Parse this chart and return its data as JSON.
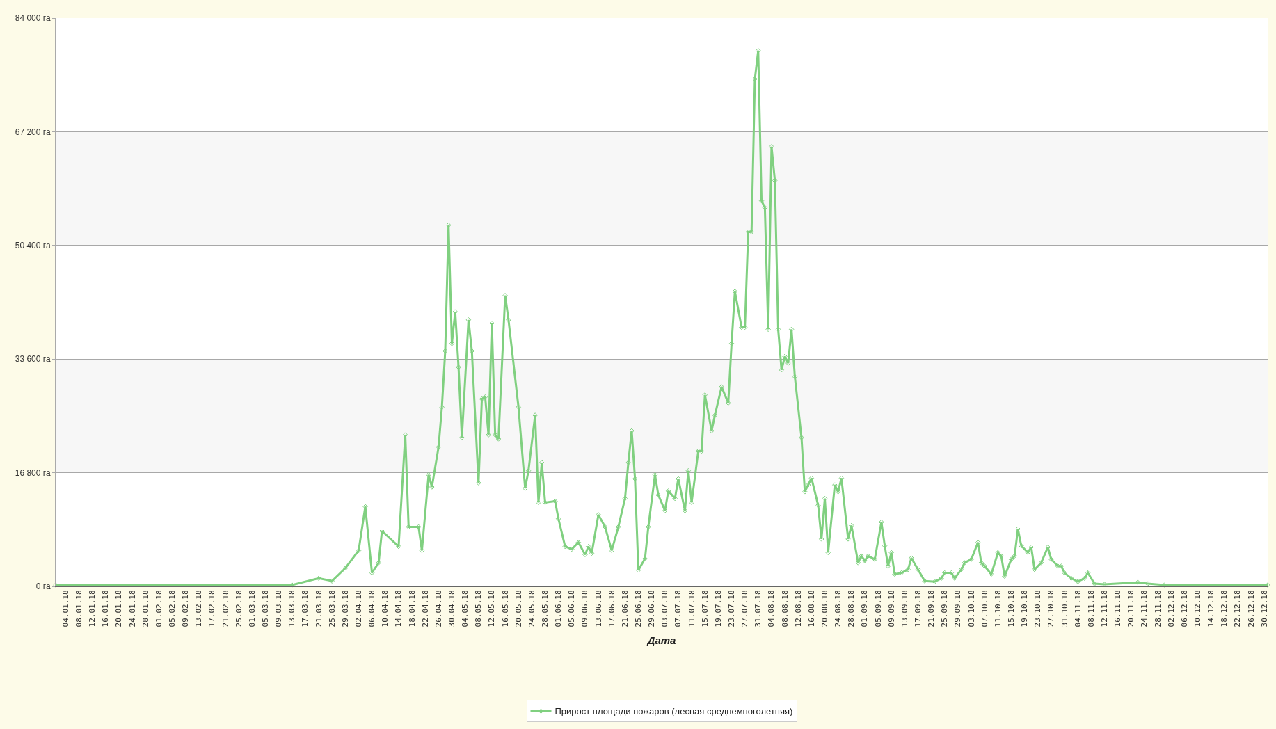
{
  "chart_data": {
    "type": "line",
    "xlabel": "Дата",
    "legend": "bottom",
    "grid": "y",
    "marker": "diamond",
    "line_style": "solid",
    "xlim": [
      "--01-01",
      "--12-31"
    ],
    "ylim": [
      0,
      84000
    ],
    "yticks": [
      {
        "value": 0,
        "label": "0 га"
      },
      {
        "value": 16800,
        "label": "16 800 га"
      },
      {
        "value": 33600,
        "label": "33 600 га"
      },
      {
        "value": 50400,
        "label": "50 400 га"
      },
      {
        "value": 67200,
        "label": "67 200 га"
      },
      {
        "value": 84000,
        "label": "84 000 га"
      }
    ],
    "bands": [
      {
        "axis": "y",
        "from": 16800,
        "to": 33600,
        "color": "#f7f7f7"
      },
      {
        "axis": "y",
        "from": 50400,
        "to": 67200,
        "color": "#f7f7f7"
      }
    ],
    "series": [
      {
        "name": "Прирост площади пожаров (лесная среднемноголетняя)",
        "color": "#80d080",
        "x": [
          "--01-01",
          "--03-13",
          "--03-21",
          "--03-25",
          "--03-29",
          "--04-02",
          "--04-04",
          "--04-06",
          "--04-08",
          "--04-09",
          "--04-14",
          "--04-16",
          "--04-17",
          "--04-20",
          "--04-21",
          "--04-23",
          "--04-24",
          "--04-26",
          "--04-27",
          "--04-28",
          "--04-29",
          "--04-30",
          "--05-01",
          "--05-02",
          "--05-03",
          "--05-05",
          "--05-06",
          "--05-08",
          "--05-09",
          "--05-10",
          "--05-11",
          "--05-12",
          "--05-13",
          "--05-14",
          "--05-16",
          "--05-17",
          "--05-20",
          "--05-22",
          "--05-23",
          "--05-25",
          "--05-26",
          "--05-27",
          "--05-28",
          "--05-31",
          "--06-01",
          "--06-03",
          "--06-05",
          "--06-07",
          "--06-09",
          "--06-10",
          "--06-11",
          "--06-13",
          "--06-15",
          "--06-17",
          "--06-19",
          "--06-21",
          "--06-22",
          "--06-23",
          "--06-24",
          "--06-25",
          "--06-27",
          "--06-28",
          "--06-30",
          "--07-01",
          "--07-03",
          "--07-04",
          "--07-06",
          "--07-07",
          "--07-09",
          "--07-10",
          "--07-11",
          "--07-13",
          "--07-14",
          "--07-15",
          "--07-17",
          "--07-18",
          "--07-20",
          "--07-22",
          "--07-23",
          "--07-24",
          "--07-26",
          "--07-27",
          "--07-28",
          "--07-29",
          "--07-30",
          "--07-31",
          "--08-01",
          "--08-02",
          "--08-03",
          "--08-04",
          "--08-05",
          "--08-06",
          "--08-07",
          "--08-08",
          "--08-09",
          "--08-10",
          "--08-11",
          "--08-13",
          "--08-14",
          "--08-15",
          "--08-16",
          "--08-18",
          "--08-19",
          "--08-20",
          "--08-21",
          "--08-23",
          "--08-24",
          "--08-25",
          "--08-27",
          "--08-28",
          "--08-30",
          "--08-31",
          "--09-01",
          "--09-02",
          "--09-04",
          "--09-06",
          "--09-07",
          "--09-08",
          "--09-09",
          "--09-10",
          "--09-12",
          "--09-14",
          "--09-15",
          "--09-17",
          "--09-19",
          "--09-22",
          "--09-24",
          "--09-25",
          "--09-27",
          "--09-28",
          "--09-30",
          "--10-01",
          "--10-03",
          "--10-05",
          "--10-06",
          "--10-07",
          "--10-09",
          "--10-11",
          "--10-12",
          "--10-13",
          "--10-15",
          "--10-16",
          "--10-17",
          "--10-18",
          "--10-20",
          "--10-21",
          "--10-22",
          "--10-24",
          "--10-26",
          "--10-27",
          "--10-29",
          "--10-30",
          "--10-31",
          "--11-02",
          "--11-04",
          "--11-06",
          "--11-07",
          "--11-09",
          "--11-12",
          "--11-22",
          "--11-25",
          "--11-30",
          "--12-31"
        ],
        "values": [
          200,
          200,
          1200,
          800,
          2700,
          5300,
          11800,
          2000,
          3500,
          8200,
          5900,
          22400,
          8800,
          8800,
          5300,
          16500,
          14700,
          20600,
          26500,
          34800,
          53400,
          35900,
          40600,
          32400,
          22000,
          39400,
          34800,
          15300,
          27700,
          28000,
          22400,
          38900,
          22400,
          21800,
          43000,
          39400,
          26500,
          14500,
          17100,
          25300,
          12400,
          18300,
          12400,
          12600,
          10000,
          5900,
          5500,
          6500,
          4700,
          5900,
          4900,
          10600,
          8800,
          5300,
          8800,
          13000,
          18300,
          23000,
          15900,
          2400,
          4100,
          8800,
          16500,
          13500,
          11200,
          14100,
          13000,
          15900,
          11200,
          17100,
          12400,
          20000,
          20000,
          28300,
          23000,
          25300,
          29500,
          27100,
          35900,
          43600,
          38300,
          38300,
          52400,
          52400,
          75000,
          79200,
          57000,
          56000,
          38000,
          65000,
          60000,
          38000,
          32000,
          34000,
          33000,
          38000,
          31000,
          22000,
          14000,
          15000,
          16000,
          12000,
          7000,
          13000,
          5000,
          15000,
          14000,
          16000,
          7000,
          9000,
          3500,
          4500,
          3800,
          4500,
          4000,
          9500,
          6000,
          3000,
          5000,
          1800,
          2000,
          2500,
          4200,
          2500,
          800,
          700,
          1200,
          2000,
          2000,
          1200,
          2500,
          3500,
          4000,
          6500,
          3500,
          3000,
          1800,
          5000,
          4500,
          1500,
          4000,
          4500,
          8500,
          6000,
          5000,
          5800,
          2500,
          3500,
          5800,
          4000,
          3000,
          3000,
          2000,
          1200,
          700,
          1200,
          2000,
          400,
          300,
          600,
          400,
          200,
          200
        ]
      }
    ],
    "xticks": [
      {
        "value": "--01-04",
        "label": "04.01.18"
      },
      {
        "value": "--01-08",
        "label": "08.01.18"
      },
      {
        "value": "--01-12",
        "label": "12.01.18"
      },
      {
        "value": "--01-16",
        "label": "16.01.18"
      },
      {
        "value": "--01-20",
        "label": "20.01.18"
      },
      {
        "value": "--01-24",
        "label": "24.01.18"
      },
      {
        "value": "--01-28",
        "label": "28.01.18"
      },
      {
        "value": "--02-01",
        "label": "01.02.18"
      },
      {
        "value": "--02-05",
        "label": "05.02.18"
      },
      {
        "value": "--02-09",
        "label": "09.02.18"
      },
      {
        "value": "--02-13",
        "label": "13.02.18"
      },
      {
        "value": "--02-17",
        "label": "17.02.18"
      },
      {
        "value": "--02-21",
        "label": "21.02.18"
      },
      {
        "value": "--02-25",
        "label": "25.02.18"
      },
      {
        "value": "--03-01",
        "label": "01.03.18"
      },
      {
        "value": "--03-05",
        "label": "05.03.18"
      },
      {
        "value": "--03-09",
        "label": "09.03.18"
      },
      {
        "value": "--03-13",
        "label": "13.03.18"
      },
      {
        "value": "--03-17",
        "label": "17.03.18"
      },
      {
        "value": "--03-21",
        "label": "21.03.18"
      },
      {
        "value": "--03-25",
        "label": "25.03.18"
      },
      {
        "value": "--03-29",
        "label": "29.03.18"
      },
      {
        "value": "--04-02",
        "label": "02.04.18"
      },
      {
        "value": "--04-06",
        "label": "06.04.18"
      },
      {
        "value": "--04-10",
        "label": "10.04.18"
      },
      {
        "value": "--04-14",
        "label": "14.04.18"
      },
      {
        "value": "--04-18",
        "label": "18.04.18"
      },
      {
        "value": "--04-22",
        "label": "22.04.18"
      },
      {
        "value": "--04-26",
        "label": "26.04.18"
      },
      {
        "value": "--04-30",
        "label": "30.04.18"
      },
      {
        "value": "--05-04",
        "label": "04.05.18"
      },
      {
        "value": "--05-08",
        "label": "08.05.18"
      },
      {
        "value": "--05-12",
        "label": "12.05.18"
      },
      {
        "value": "--05-16",
        "label": "16.05.18"
      },
      {
        "value": "--05-20",
        "label": "20.05.18"
      },
      {
        "value": "--05-24",
        "label": "24.05.18"
      },
      {
        "value": "--05-28",
        "label": "28.05.18"
      },
      {
        "value": "--06-01",
        "label": "01.06.18"
      },
      {
        "value": "--06-05",
        "label": "05.06.18"
      },
      {
        "value": "--06-09",
        "label": "09.06.18"
      },
      {
        "value": "--06-13",
        "label": "13.06.18"
      },
      {
        "value": "--06-17",
        "label": "17.06.18"
      },
      {
        "value": "--06-21",
        "label": "21.06.18"
      },
      {
        "value": "--06-25",
        "label": "25.06.18"
      },
      {
        "value": "--06-29",
        "label": "29.06.18"
      },
      {
        "value": "--07-03",
        "label": "03.07.18"
      },
      {
        "value": "--07-07",
        "label": "07.07.18"
      },
      {
        "value": "--07-11",
        "label": "11.07.18"
      },
      {
        "value": "--07-15",
        "label": "15.07.18"
      },
      {
        "value": "--07-19",
        "label": "19.07.18"
      },
      {
        "value": "--07-23",
        "label": "23.07.18"
      },
      {
        "value": "--07-27",
        "label": "27.07.18"
      },
      {
        "value": "--07-31",
        "label": "31.07.18"
      },
      {
        "value": "--08-04",
        "label": "04.08.18"
      },
      {
        "value": "--08-08",
        "label": "08.08.18"
      },
      {
        "value": "--08-12",
        "label": "12.08.18"
      },
      {
        "value": "--08-16",
        "label": "16.08.18"
      },
      {
        "value": "--08-20",
        "label": "20.08.18"
      },
      {
        "value": "--08-24",
        "label": "24.08.18"
      },
      {
        "value": "--08-28",
        "label": "28.08.18"
      },
      {
        "value": "--09-01",
        "label": "01.09.18"
      },
      {
        "value": "--09-05",
        "label": "05.09.18"
      },
      {
        "value": "--09-09",
        "label": "09.09.18"
      },
      {
        "value": "--09-13",
        "label": "13.09.18"
      },
      {
        "value": "--09-17",
        "label": "17.09.18"
      },
      {
        "value": "--09-21",
        "label": "21.09.18"
      },
      {
        "value": "--09-25",
        "label": "25.09.18"
      },
      {
        "value": "--09-29",
        "label": "29.09.18"
      },
      {
        "value": "--10-03",
        "label": "03.10.18"
      },
      {
        "value": "--10-07",
        "label": "07.10.18"
      },
      {
        "value": "--10-11",
        "label": "11.10.18"
      },
      {
        "value": "--10-15",
        "label": "15.10.18"
      },
      {
        "value": "--10-19",
        "label": "19.10.18"
      },
      {
        "value": "--10-23",
        "label": "23.10.18"
      },
      {
        "value": "--10-27",
        "label": "27.10.18"
      },
      {
        "value": "--10-31",
        "label": "31.10.18"
      },
      {
        "value": "--11-04",
        "label": "04.11.18"
      },
      {
        "value": "--11-08",
        "label": "08.11.18"
      },
      {
        "value": "--11-12",
        "label": "12.11.18"
      },
      {
        "value": "--11-16",
        "label": "16.11.18"
      },
      {
        "value": "--11-20",
        "label": "20.11.18"
      },
      {
        "value": "--11-24",
        "label": "24.11.18"
      },
      {
        "value": "--11-28",
        "label": "28.11.18"
      },
      {
        "value": "--12-02",
        "label": "02.12.18"
      },
      {
        "value": "--12-06",
        "label": "06.12.18"
      },
      {
        "value": "--12-10",
        "label": "10.12.18"
      },
      {
        "value": "--12-14",
        "label": "14.12.18"
      },
      {
        "value": "--12-18",
        "label": "18.12.18"
      },
      {
        "value": "--12-22",
        "label": "22.12.18"
      },
      {
        "value": "--12-26",
        "label": "26.12.18"
      },
      {
        "value": "--12-30",
        "label": "30.12.18"
      }
    ]
  }
}
